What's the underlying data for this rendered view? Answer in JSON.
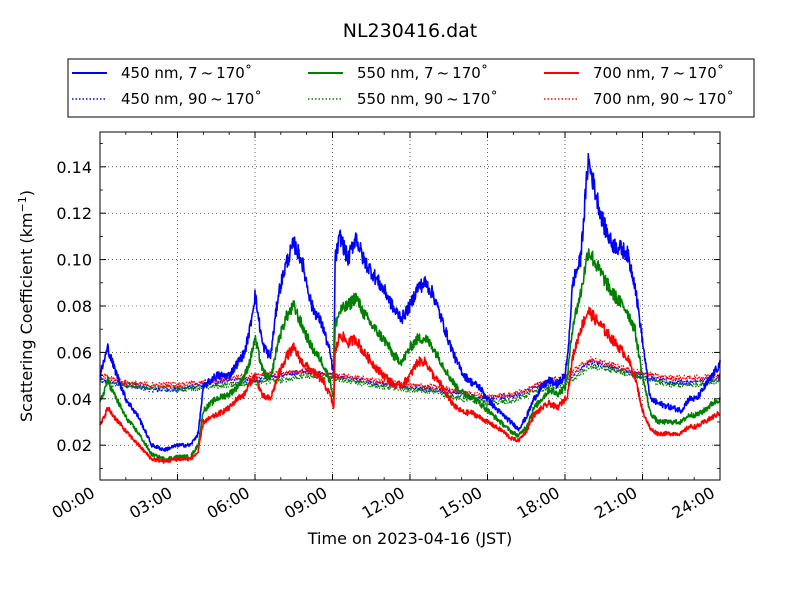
{
  "chart_data": {
    "type": "line",
    "title": "NL230416.dat",
    "xlabel": "Time on 2023-04-16 (JST)",
    "ylabel": "Scattering Coefficient (km",
    "ylabel_exp": "−1",
    "ylabel_close": ")",
    "xlim": [
      0,
      24
    ],
    "ylim": [
      0.005,
      0.155
    ],
    "x_ticks": [
      0,
      3,
      6,
      9,
      12,
      15,
      18,
      21,
      24
    ],
    "x_tick_labels": [
      "00:00",
      "03:00",
      "06:00",
      "09:00",
      "12:00",
      "15:00",
      "18:00",
      "21:00",
      "24:00"
    ],
    "y_ticks": [
      0.02,
      0.04,
      0.06,
      0.08,
      0.1,
      0.12,
      0.14
    ],
    "y_tick_labels": [
      "0.02",
      "0.04",
      "0.06",
      "0.08",
      "0.10",
      "0.12",
      "0.14"
    ],
    "grid": true,
    "legend_position": "top",
    "series": [
      {
        "name": "450 nm, 7 ~ 170˚",
        "color": "#0000ff",
        "style": "solid",
        "x": [
          0,
          0.3,
          0.5,
          1,
          1.5,
          2,
          2.5,
          3,
          3.5,
          3.8,
          4,
          4.5,
          5,
          5.3,
          5.6,
          5.8,
          6,
          6.3,
          6.6,
          6.9,
          7.2,
          7.5,
          7.8,
          8.2,
          8.6,
          8.9,
          9.05,
          9.1,
          9.3,
          9.6,
          9.9,
          10.2,
          10.5,
          10.8,
          11.1,
          11.4,
          11.7,
          12,
          12.3,
          12.6,
          12.9,
          13.2,
          13.5,
          13.8,
          14.1,
          14.4,
          14.7,
          15,
          15.3,
          15.6,
          15.9,
          16.2,
          16.5,
          16.8,
          17.1,
          17.4,
          17.7,
          18,
          18.1,
          18.3,
          18.6,
          18.9,
          19.2,
          19.5,
          19.8,
          20.1,
          20.4,
          20.7,
          21,
          21.3,
          21.6,
          21.9,
          22.2,
          22.5,
          22.8,
          23.1,
          23.4,
          23.7,
          24
        ],
        "y": [
          0.05,
          0.062,
          0.055,
          0.04,
          0.032,
          0.02,
          0.018,
          0.02,
          0.02,
          0.025,
          0.045,
          0.05,
          0.05,
          0.055,
          0.06,
          0.07,
          0.085,
          0.063,
          0.058,
          0.085,
          0.098,
          0.107,
          0.1,
          0.08,
          0.072,
          0.06,
          0.05,
          0.1,
          0.11,
          0.1,
          0.11,
          0.1,
          0.095,
          0.09,
          0.085,
          0.078,
          0.075,
          0.08,
          0.088,
          0.09,
          0.085,
          0.075,
          0.065,
          0.056,
          0.05,
          0.047,
          0.045,
          0.04,
          0.036,
          0.033,
          0.03,
          0.027,
          0.032,
          0.04,
          0.045,
          0.048,
          0.046,
          0.05,
          0.058,
          0.09,
          0.1,
          0.143,
          0.128,
          0.115,
          0.107,
          0.105,
          0.103,
          0.09,
          0.065,
          0.04,
          0.038,
          0.037,
          0.036,
          0.035,
          0.04,
          0.04,
          0.045,
          0.05,
          0.055
        ]
      },
      {
        "name": "450 nm, 90 ~ 170˚",
        "color": "#0000ff",
        "style": "dotted",
        "x": [
          0,
          1,
          2,
          3,
          4,
          5,
          6,
          7,
          8,
          9,
          10,
          11,
          12,
          13,
          14,
          15,
          16,
          17,
          18,
          19,
          20,
          21,
          22,
          23,
          24
        ],
        "y": [
          0.048,
          0.046,
          0.044,
          0.044,
          0.046,
          0.048,
          0.048,
          0.05,
          0.052,
          0.05,
          0.048,
          0.046,
          0.045,
          0.044,
          0.042,
          0.04,
          0.041,
          0.046,
          0.048,
          0.056,
          0.053,
          0.05,
          0.047,
          0.047,
          0.049
        ]
      },
      {
        "name": "550 nm, 7 ~ 170˚",
        "color": "#008000",
        "style": "solid",
        "x": [
          0,
          0.3,
          0.5,
          1,
          1.5,
          2,
          2.5,
          3,
          3.5,
          3.8,
          4,
          4.5,
          5,
          5.3,
          5.6,
          5.8,
          6,
          6.3,
          6.6,
          6.9,
          7.2,
          7.5,
          7.8,
          8.2,
          8.6,
          8.9,
          9.05,
          9.1,
          9.3,
          9.6,
          9.9,
          10.2,
          10.5,
          10.8,
          11.1,
          11.4,
          11.7,
          12,
          12.3,
          12.6,
          12.9,
          13.2,
          13.5,
          13.8,
          14.1,
          14.4,
          14.7,
          15,
          15.3,
          15.6,
          15.9,
          16.2,
          16.5,
          16.8,
          17.1,
          17.4,
          17.7,
          18,
          18.1,
          18.3,
          18.6,
          18.9,
          19.2,
          19.5,
          19.8,
          20.1,
          20.4,
          20.7,
          21,
          21.3,
          21.6,
          21.9,
          22.2,
          22.5,
          22.8,
          23.1,
          23.4,
          23.7,
          24
        ],
        "y": [
          0.038,
          0.048,
          0.043,
          0.032,
          0.025,
          0.016,
          0.014,
          0.015,
          0.015,
          0.02,
          0.035,
          0.04,
          0.042,
          0.045,
          0.05,
          0.056,
          0.066,
          0.052,
          0.048,
          0.065,
          0.075,
          0.08,
          0.072,
          0.062,
          0.056,
          0.048,
          0.04,
          0.072,
          0.078,
          0.08,
          0.084,
          0.077,
          0.072,
          0.068,
          0.064,
          0.058,
          0.056,
          0.062,
          0.066,
          0.066,
          0.062,
          0.056,
          0.05,
          0.045,
          0.042,
          0.041,
          0.038,
          0.035,
          0.032,
          0.029,
          0.026,
          0.024,
          0.028,
          0.036,
          0.04,
          0.044,
          0.042,
          0.045,
          0.05,
          0.072,
          0.085,
          0.104,
          0.098,
          0.092,
          0.086,
          0.082,
          0.078,
          0.07,
          0.05,
          0.034,
          0.03,
          0.03,
          0.03,
          0.03,
          0.033,
          0.033,
          0.035,
          0.038,
          0.04
        ]
      },
      {
        "name": "550 nm, 90 ~ 170˚",
        "color": "#008000",
        "style": "dotted",
        "x": [
          0,
          1,
          2,
          3,
          4,
          5,
          6,
          7,
          8,
          9,
          10,
          11,
          12,
          13,
          14,
          15,
          16,
          17,
          18,
          19,
          20,
          21,
          22,
          23,
          24
        ],
        "y": [
          0.047,
          0.046,
          0.045,
          0.044,
          0.045,
          0.046,
          0.047,
          0.048,
          0.05,
          0.049,
          0.047,
          0.045,
          0.044,
          0.043,
          0.04,
          0.038,
          0.039,
          0.044,
          0.046,
          0.054,
          0.052,
          0.049,
          0.046,
          0.046,
          0.048
        ]
      },
      {
        "name": "700 nm, 7 ~ 170˚",
        "color": "#ff0000",
        "style": "solid",
        "x": [
          0,
          0.3,
          0.5,
          1,
          1.5,
          2,
          2.5,
          3,
          3.5,
          3.8,
          4,
          4.5,
          5,
          5.3,
          5.6,
          5.8,
          6,
          6.3,
          6.6,
          6.9,
          7.2,
          7.5,
          7.8,
          8.2,
          8.6,
          8.9,
          9.05,
          9.1,
          9.3,
          9.6,
          9.9,
          10.2,
          10.5,
          10.8,
          11.1,
          11.4,
          11.7,
          12,
          12.3,
          12.6,
          12.9,
          13.2,
          13.5,
          13.8,
          14.1,
          14.4,
          14.7,
          15,
          15.3,
          15.6,
          15.9,
          16.2,
          16.5,
          16.8,
          17.1,
          17.4,
          17.7,
          18,
          18.1,
          18.3,
          18.6,
          18.9,
          19.2,
          19.5,
          19.8,
          20.1,
          20.4,
          20.7,
          21,
          21.3,
          21.6,
          21.9,
          22.2,
          22.5,
          22.8,
          23.1,
          23.4,
          23.7,
          24
        ],
        "y": [
          0.028,
          0.036,
          0.033,
          0.026,
          0.02,
          0.014,
          0.013,
          0.014,
          0.014,
          0.017,
          0.03,
          0.033,
          0.036,
          0.04,
          0.042,
          0.047,
          0.05,
          0.041,
          0.04,
          0.05,
          0.058,
          0.062,
          0.056,
          0.052,
          0.048,
          0.042,
          0.036,
          0.06,
          0.068,
          0.064,
          0.066,
          0.06,
          0.056,
          0.052,
          0.049,
          0.046,
          0.046,
          0.05,
          0.056,
          0.056,
          0.05,
          0.046,
          0.04,
          0.036,
          0.034,
          0.034,
          0.032,
          0.03,
          0.028,
          0.026,
          0.023,
          0.022,
          0.026,
          0.033,
          0.036,
          0.038,
          0.036,
          0.04,
          0.042,
          0.058,
          0.07,
          0.078,
          0.074,
          0.07,
          0.066,
          0.062,
          0.058,
          0.05,
          0.035,
          0.027,
          0.025,
          0.025,
          0.025,
          0.025,
          0.028,
          0.028,
          0.03,
          0.032,
          0.034
        ]
      },
      {
        "name": "700 nm, 90 ~ 170˚",
        "color": "#ff0000",
        "style": "dotted",
        "x": [
          0,
          1,
          2,
          3,
          4,
          5,
          6,
          7,
          8,
          9,
          10,
          11,
          12,
          13,
          14,
          15,
          16,
          17,
          18,
          19,
          20,
          21,
          22,
          23,
          24
        ],
        "y": [
          0.05,
          0.047,
          0.046,
          0.046,
          0.047,
          0.049,
          0.05,
          0.051,
          0.052,
          0.05,
          0.049,
          0.047,
          0.046,
          0.045,
          0.043,
          0.041,
          0.042,
          0.046,
          0.05,
          0.057,
          0.054,
          0.051,
          0.049,
          0.049,
          0.05
        ]
      }
    ]
  }
}
